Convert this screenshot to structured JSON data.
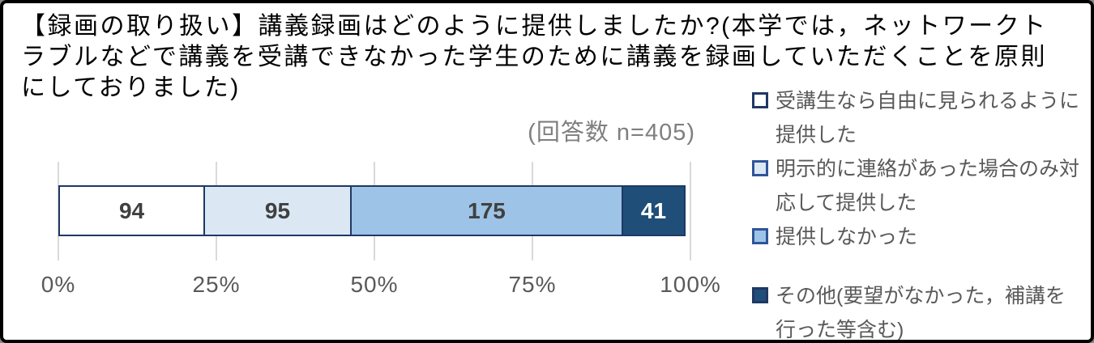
{
  "title": "【録画の取り扱い】講義録画はどのように提供しましたか?(本学では，ネットワークトラブルなどで講義を受講できなかった学生のために講義を録画していただくことを原則にしておりました)",
  "subtitle": "(回答数 n=405)",
  "chart_data": {
    "type": "bar",
    "variant": "horizontal-stacked-100pct",
    "title": "【録画の取り扱い】講義録画はどのように提供しましたか?(本学では，ネットワークトラブルなどで講義を受講できなかった学生のために講義を録画していただくことを原則にしておりました)",
    "subtitle": "(回答数 n=405)",
    "n_total": 405,
    "xlim": [
      0,
      100
    ],
    "x_ticks": [
      "0%",
      "25%",
      "50%",
      "75%",
      "100%"
    ],
    "grid": true,
    "legend_position": "right",
    "segment_border_color": "#1f3864",
    "segments": [
      {
        "label": "受講生なら自由に見られるように提供した",
        "value": 94,
        "percent": 23.2,
        "color": "#ffffff",
        "label_color": "#404040"
      },
      {
        "label": "明示的に連絡があった場合のみ対応して提供した",
        "value": 95,
        "percent": 23.5,
        "color": "#dbe8f4",
        "label_color": "#404040"
      },
      {
        "label": "提供しなかった",
        "value": 175,
        "percent": 43.2,
        "color": "#9dc3e6",
        "label_color": "#404040"
      },
      {
        "label": "その他(要望がなかった，補講を行った等含む)",
        "value": 41,
        "percent": 10.1,
        "color": "#1f4e79",
        "label_color": "#ffffff"
      }
    ]
  },
  "legend": {
    "items": [
      {
        "label": "受講生なら自由に見られるように提供した",
        "swatch_fill": "#ffffff",
        "swatch_border": "#1f3864"
      },
      {
        "label": "明示的に連絡があった場合のみ対応して提供した",
        "swatch_fill": "#dbe8f4",
        "swatch_border": "#2e5597"
      },
      {
        "label": "提供しなかった",
        "swatch_fill": "#9dc3e6",
        "swatch_border": "#2e5597"
      },
      {
        "label": "その他(要望がなかった，補講を行った等含む)",
        "swatch_fill": "#1f4e79",
        "swatch_border": "#1f3864"
      }
    ]
  }
}
